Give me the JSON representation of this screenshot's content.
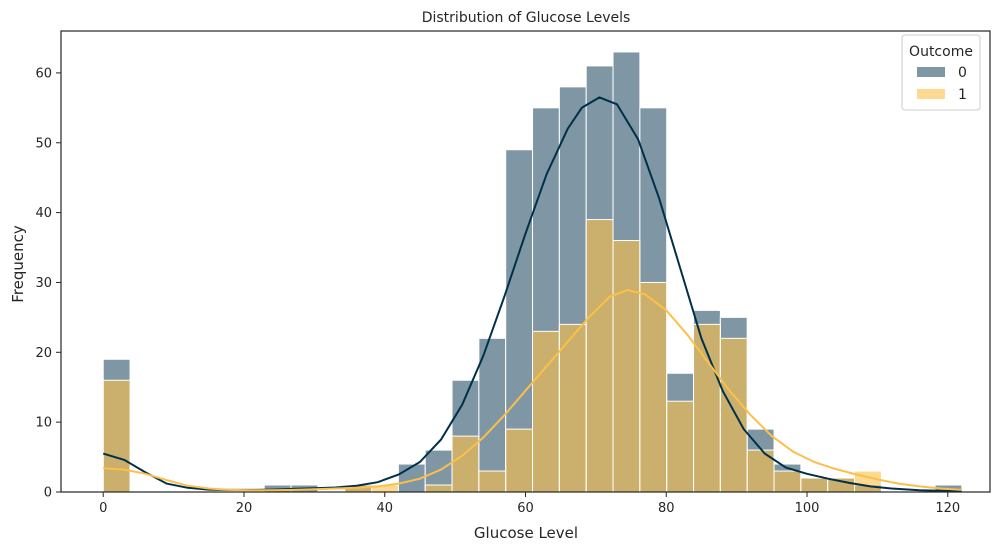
{
  "chart_data": {
    "type": "bar",
    "title": "Distribution of Glucose Levels",
    "xlabel": "Glucose Level",
    "ylabel": "Frequency",
    "xlim": [
      -6,
      126
    ],
    "ylim": [
      0,
      66
    ],
    "xticks": [
      0,
      20,
      40,
      60,
      80,
      100,
      120
    ],
    "yticks": [
      0,
      10,
      20,
      30,
      40,
      50,
      60
    ],
    "bin_edges": [
      0,
      3.8125,
      7.625,
      11.4375,
      15.25,
      19.0625,
      22.875,
      26.6875,
      30.5,
      34.3125,
      38.125,
      41.9375,
      45.75,
      49.5625,
      53.375,
      57.1875,
      61.0,
      64.8125,
      68.625,
      72.4375,
      76.25,
      80.0625,
      83.875,
      87.6875,
      91.5,
      95.3125,
      99.125,
      102.9375,
      106.75,
      110.5625,
      114.375,
      118.1875,
      122.0
    ],
    "legend": {
      "title": "Outcome",
      "position": "top-right"
    },
    "series": [
      {
        "name": "0",
        "color": "#003049",
        "values": [
          19,
          0,
          0,
          0,
          0,
          0,
          1,
          1,
          0,
          1,
          0,
          4,
          6,
          16,
          22,
          49,
          55,
          58,
          61,
          63,
          55,
          17,
          26,
          25,
          9,
          4,
          2,
          2,
          1,
          0,
          0,
          1
        ],
        "kde": [
          [
            0,
            5.5
          ],
          [
            3,
            4.6
          ],
          [
            6,
            2.8
          ],
          [
            9,
            1.2
          ],
          [
            12,
            0.6
          ],
          [
            15,
            0.35
          ],
          [
            18,
            0.3
          ],
          [
            21,
            0.3
          ],
          [
            24,
            0.35
          ],
          [
            27,
            0.45
          ],
          [
            30,
            0.55
          ],
          [
            33,
            0.65
          ],
          [
            36,
            0.9
          ],
          [
            39,
            1.4
          ],
          [
            42,
            2.5
          ],
          [
            45,
            4.3
          ],
          [
            48,
            7.5
          ],
          [
            51,
            12.5
          ],
          [
            54,
            19.5
          ],
          [
            57,
            28
          ],
          [
            60,
            37
          ],
          [
            63,
            45.5
          ],
          [
            66,
            52
          ],
          [
            68,
            55
          ],
          [
            70.5,
            56.5
          ],
          [
            73,
            55.5
          ],
          [
            76,
            50.5
          ],
          [
            79,
            42
          ],
          [
            82,
            32
          ],
          [
            85,
            22
          ],
          [
            88,
            14.5
          ],
          [
            91,
            9
          ],
          [
            94,
            5.5
          ],
          [
            97,
            3.5
          ],
          [
            100,
            2.6
          ],
          [
            103,
            1.9
          ],
          [
            106,
            1.3
          ],
          [
            109,
            0.8
          ],
          [
            112,
            0.5
          ],
          [
            116,
            0.25
          ],
          [
            122,
            0.1
          ]
        ]
      },
      {
        "name": "1",
        "color": "#fcbf49",
        "values": [
          16,
          0,
          0,
          0,
          0,
          0,
          0,
          0,
          0,
          1,
          1,
          0,
          1,
          8,
          3,
          9,
          23,
          24,
          39,
          36,
          30,
          13,
          24,
          22,
          6,
          3,
          2,
          2,
          3,
          0,
          0,
          0
        ],
        "kde": [
          [
            0,
            3.4
          ],
          [
            3,
            3.2
          ],
          [
            6,
            2.6
          ],
          [
            9,
            1.7
          ],
          [
            12,
            0.9
          ],
          [
            15,
            0.5
          ],
          [
            18,
            0.3
          ],
          [
            21,
            0.25
          ],
          [
            24,
            0.25
          ],
          [
            27,
            0.3
          ],
          [
            30,
            0.4
          ],
          [
            33,
            0.5
          ],
          [
            36,
            0.6
          ],
          [
            39,
            0.8
          ],
          [
            42,
            1.2
          ],
          [
            45,
            1.9
          ],
          [
            48,
            3.2
          ],
          [
            51,
            5.2
          ],
          [
            54,
            7.8
          ],
          [
            57,
            11
          ],
          [
            60,
            14.5
          ],
          [
            63,
            18
          ],
          [
            66,
            21.5
          ],
          [
            69,
            25
          ],
          [
            72,
            28
          ],
          [
            74.5,
            28.9
          ],
          [
            77,
            28.3
          ],
          [
            80,
            26
          ],
          [
            83,
            22.5
          ],
          [
            86,
            18.5
          ],
          [
            89,
            14.5
          ],
          [
            92,
            11
          ],
          [
            95,
            8
          ],
          [
            98,
            5.8
          ],
          [
            101,
            4.3
          ],
          [
            104,
            3.3
          ],
          [
            107,
            2.5
          ],
          [
            110,
            1.8
          ],
          [
            113,
            1.2
          ],
          [
            116,
            0.8
          ],
          [
            119,
            0.5
          ],
          [
            122,
            0.3
          ]
        ]
      }
    ]
  }
}
